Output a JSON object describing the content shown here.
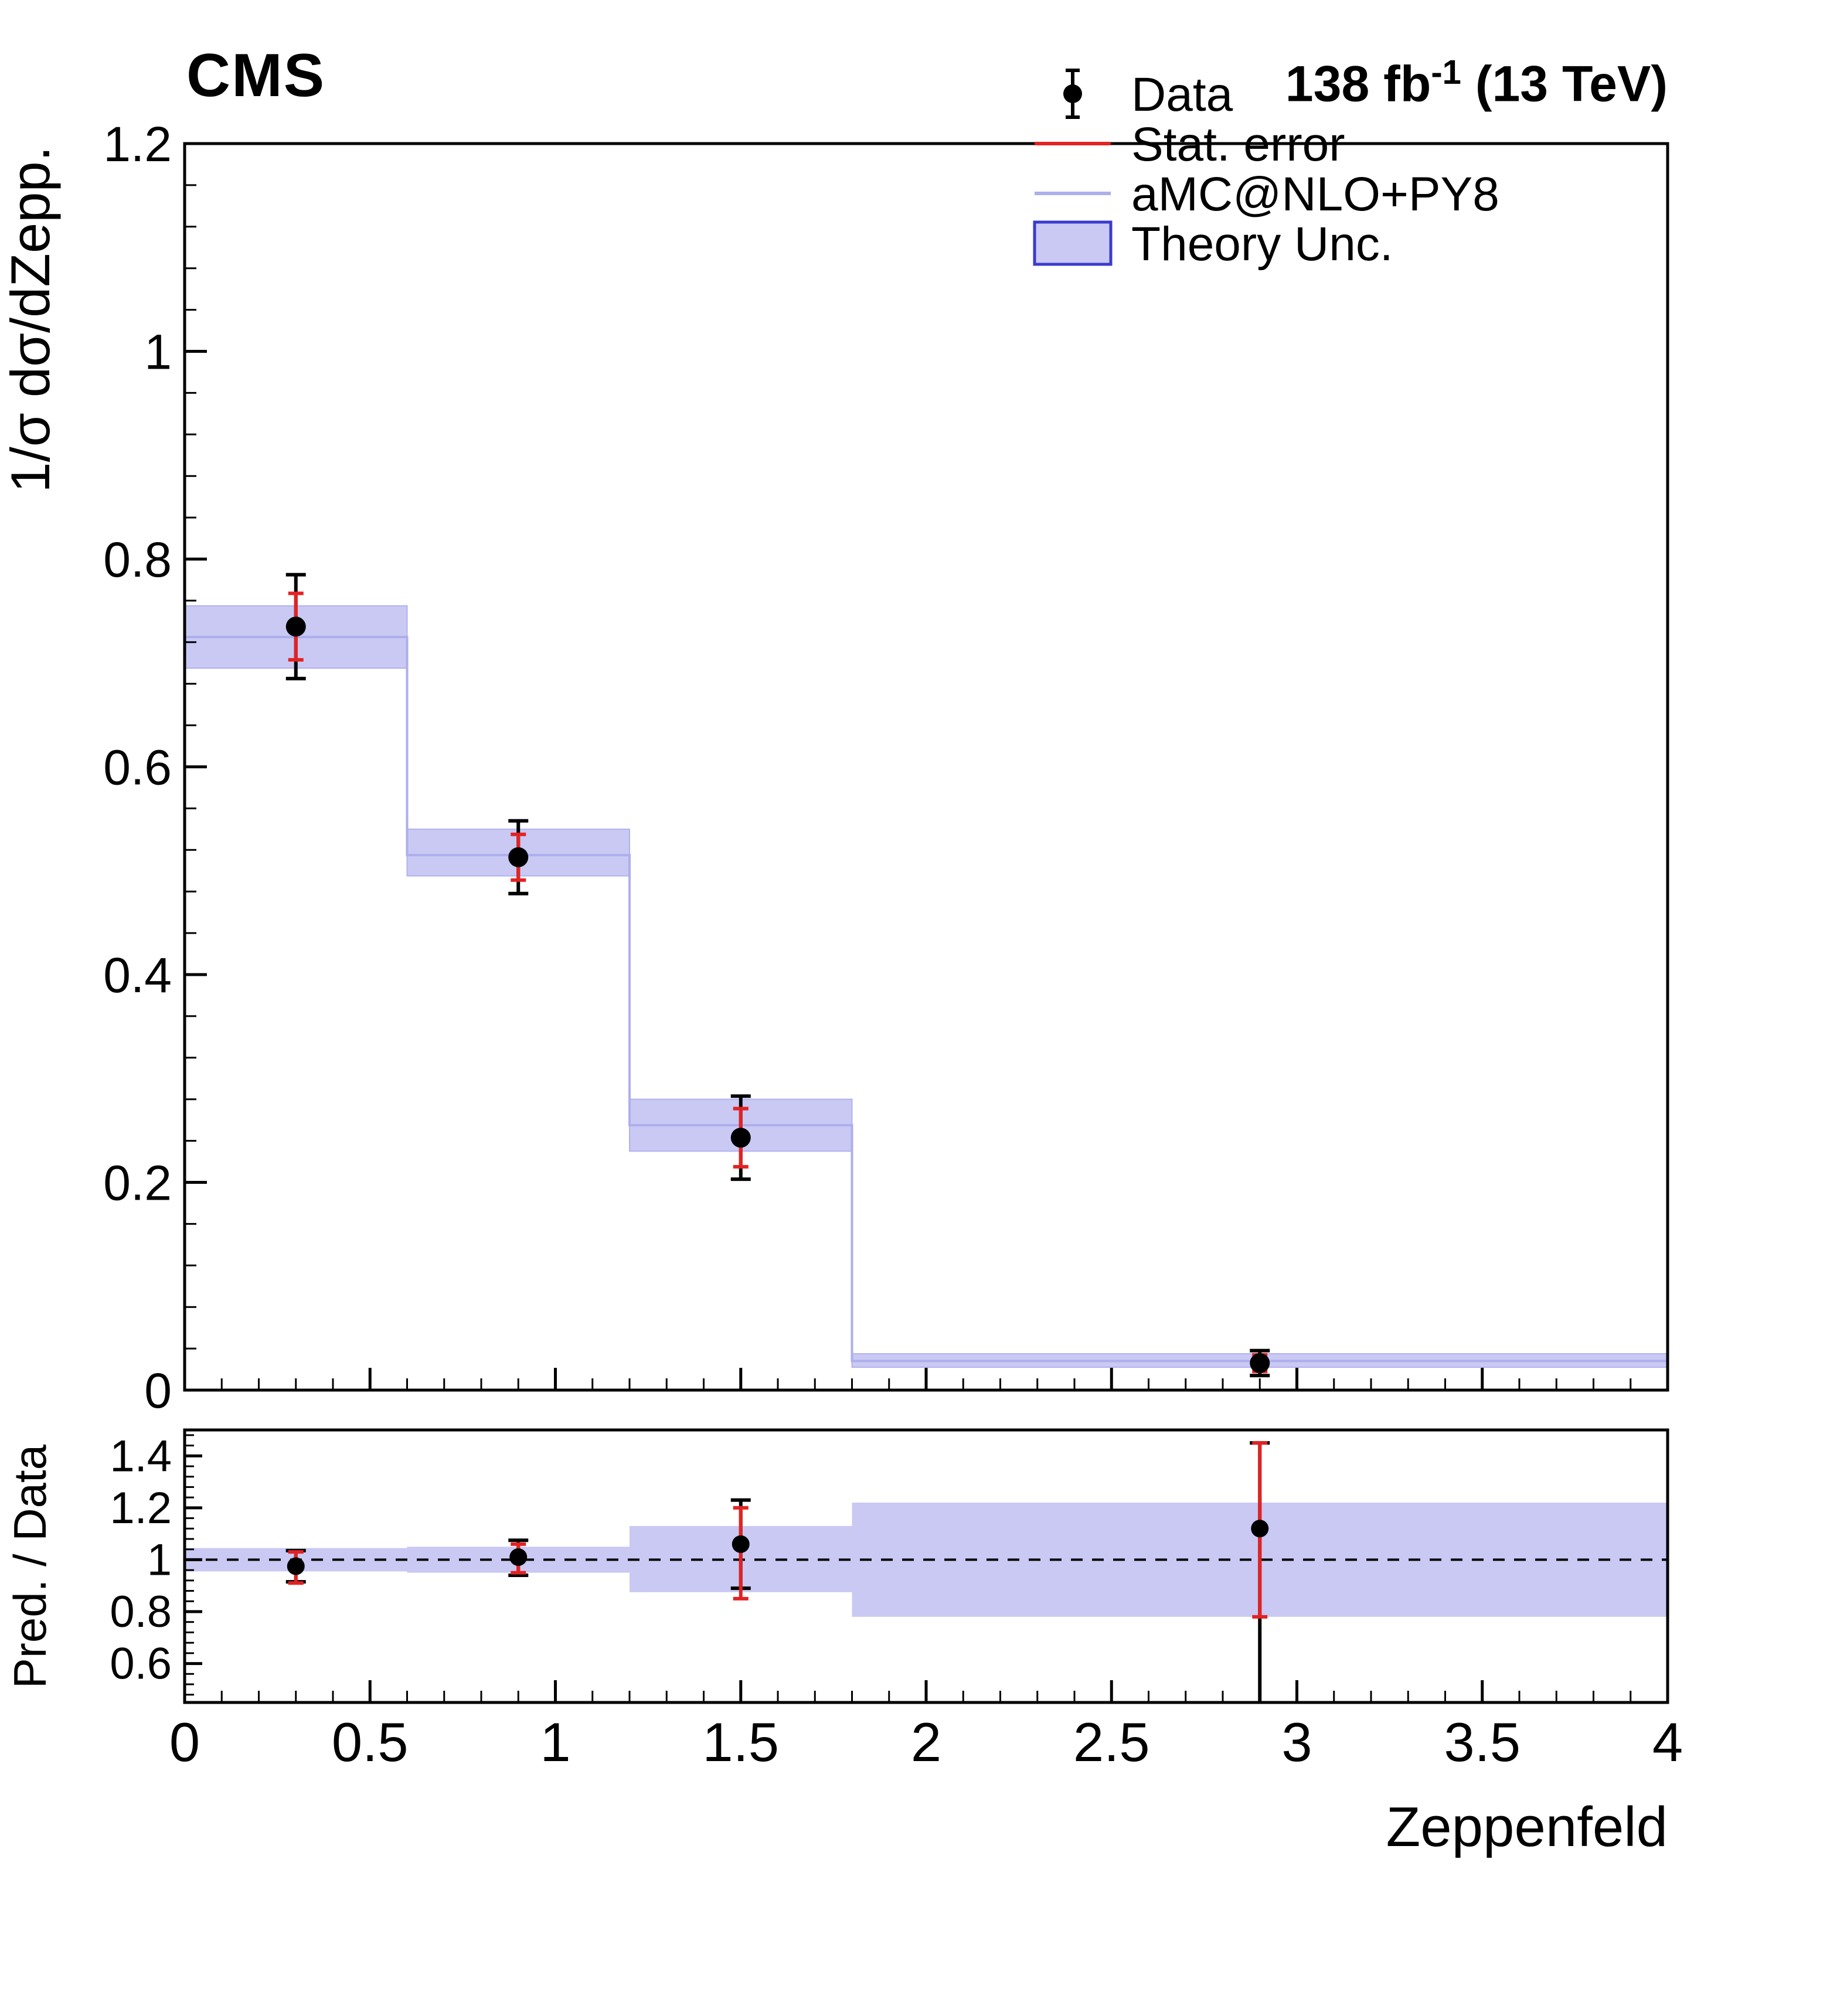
{
  "header": {
    "experiment": "CMS",
    "lumi_value": "138 fb",
    "lumi_exponent": "-1",
    "lumi_energy": " (13 TeV)"
  },
  "legend": [
    {
      "label": "Data",
      "type": "data_marker"
    },
    {
      "label": "Stat. error",
      "type": "red_line"
    },
    {
      "label": "aMC@NLO+PY8",
      "type": "pred_line"
    },
    {
      "label": "Theory Unc.",
      "type": "band_box"
    }
  ],
  "colors": {
    "band": "#c9c9f4",
    "band_edge": "#b2b2ee",
    "prediction": "#aeaeec",
    "stat_error": "#e32222",
    "data": "#000000",
    "theory_box_border": "#3b3bcd",
    "frame": "#000000"
  },
  "chart_data": [
    {
      "type": "bar",
      "panel": "main",
      "title": "",
      "xlabel": "",
      "ylabel": "1/σ dσ/dZepp.",
      "xlim": [
        0,
        4
      ],
      "ylim": [
        0,
        1.2
      ],
      "yticks": {
        "values": [
          0,
          0.2,
          0.4,
          0.6,
          0.8,
          1,
          1.2
        ],
        "labels": [
          "0",
          "0.2",
          "0.4",
          "0.6",
          "0.8",
          "1",
          "1.2"
        ]
      },
      "bin_edges": [
        0,
        0.6,
        1.2,
        1.8,
        4
      ],
      "prediction": [
        0.725,
        0.515,
        0.255,
        0.028
      ],
      "band_low": [
        0.695,
        0.495,
        0.23,
        0.022
      ],
      "band_high": [
        0.755,
        0.54,
        0.28,
        0.035
      ],
      "data_points": {
        "x": [
          0.3,
          0.9,
          1.5,
          2.9
        ],
        "y": [
          0.735,
          0.513,
          0.243,
          0.026
        ],
        "err_total": [
          0.05,
          0.035,
          0.04,
          0.012
        ],
        "err_stat": [
          0.032,
          0.022,
          0.028,
          0.008
        ]
      }
    },
    {
      "type": "scatter",
      "panel": "ratio",
      "title": "",
      "xlabel": "Zeppenfeld",
      "ylabel": "Pred. / Data",
      "xlim": [
        0,
        4
      ],
      "ylim": [
        0.45,
        1.5
      ],
      "yticks": {
        "values": [
          0.6,
          0.8,
          1,
          1.2,
          1.4
        ],
        "labels": [
          "0.6",
          "0.8",
          "1",
          "1.2",
          "1.4"
        ]
      },
      "xticks": {
        "values": [
          0,
          0.5,
          1,
          1.5,
          2,
          2.5,
          3,
          3.5,
          4
        ],
        "labels": [
          "0",
          "0.5",
          "1",
          "1.5",
          "2",
          "2.5",
          "3",
          "3.5",
          "4"
        ]
      },
      "reference_line": 1,
      "bin_edges": [
        0,
        0.6,
        1.2,
        1.8,
        4
      ],
      "band_low": [
        0.955,
        0.95,
        0.875,
        0.78
      ],
      "band_high": [
        1.045,
        1.05,
        1.13,
        1.22
      ],
      "data_points": {
        "x": [
          0.3,
          0.9,
          1.5,
          2.9
        ],
        "y": [
          0.975,
          1.01,
          1.06,
          1.12
        ],
        "err_stat_up": [
          0.055,
          0.05,
          0.14,
          0.33
        ],
        "err_stat_down": [
          0.065,
          0.06,
          0.21,
          0.34
        ],
        "err_total_up": [
          0.06,
          0.065,
          0.17,
          0.33
        ],
        "err_total_down": [
          0.06,
          0.07,
          0.17,
          0.67
        ]
      }
    }
  ]
}
